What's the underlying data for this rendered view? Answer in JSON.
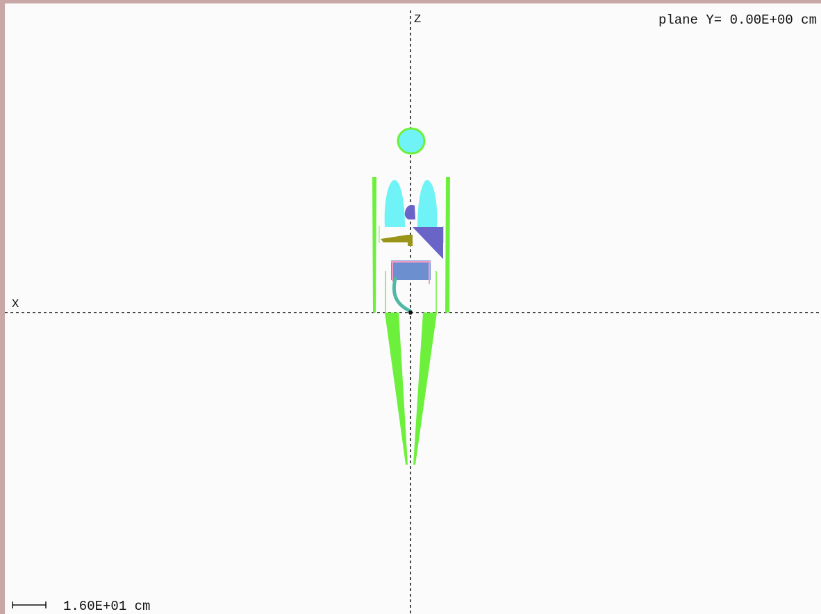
{
  "header": {
    "plane_label": "plane Y= 0.00E+00 cm"
  },
  "axes": {
    "horizontal_label": "X",
    "vertical_label": "Z"
  },
  "scale_bar": {
    "label": "1.60E+01 cm"
  },
  "colors": {
    "background": "#fbfbfb",
    "frame": "#c9a7a7",
    "skin_shell": "#6df03b",
    "lung_cyan": "#6ff3f7",
    "heart_violet": "#6b64c8",
    "olive_organ": "#9a9418",
    "stomach_blue": "#6c90cf",
    "pink_outline": "#f29ac6",
    "teal_intestine": "#4fb9a5",
    "axis": "#111111"
  }
}
